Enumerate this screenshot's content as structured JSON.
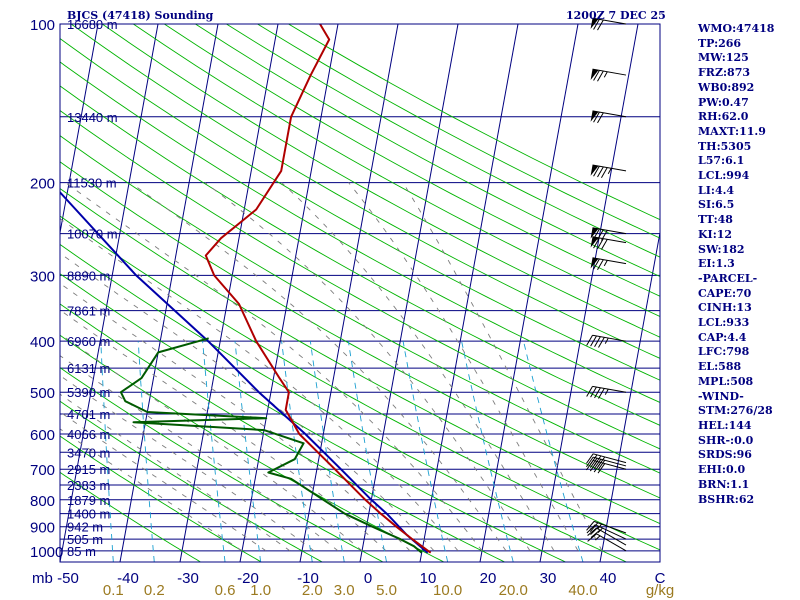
{
  "title": {
    "station": "BJCS (47418) Sounding",
    "time": "1200Z  7 DEC 25"
  },
  "indices": [
    "WMO:47418",
    "TP:266",
    "MW:125",
    "FRZ:873",
    "WB0:892",
    "PW:0.47",
    "RH:62.0",
    "MAXT:11.9",
    "TH:5305",
    "L57:6.1",
    "LCL:994",
    "LI:4.4",
    "SI:6.5",
    "TT:48",
    "KI:12",
    "SW:182",
    "EI:1.3",
    "-PARCEL-",
    "CAPE:70",
    "CINH:13",
    "LCL:933",
    "CAP:4.4",
    "LFC:798",
    "EL:588",
    "MPL:508",
    "-WIND-",
    "STM:276/28",
    "HEL:144",
    "SHR-:0.0",
    "SRDS:96",
    "EHI:0.0",
    "BRN:1.1",
    "BSHR:62"
  ],
  "colors": {
    "axis": "#000080",
    "isotherm": "#000080",
    "dry_adiabat": "#00b400",
    "moist_adiabat": "#7d7d7d",
    "mixing_ratio": "#1a9fd0",
    "temperature": "#b00000",
    "dewpoint": "#005a00",
    "parcel": "#0000aa",
    "mixing_label": "#9b7a20"
  },
  "chart_data": {
    "type": "skew-t log-p sounding",
    "pressure_axis_label": "mb",
    "mixing_ratio_unit": "g/kg",
    "pressure_range_mb": [
      100,
      1050
    ],
    "temperature_range_c": [
      -50,
      50
    ],
    "pressure_ticks": [
      100,
      200,
      300,
      400,
      500,
      600,
      700,
      800,
      900,
      1000
    ],
    "temperature_ticks": [
      -50,
      -40,
      -30,
      -20,
      -10,
      0,
      10,
      20,
      30,
      40
    ],
    "mixing_ratio_ticks": [
      {
        "label": "0.1",
        "value": 0.1
      },
      {
        "label": "0.2",
        "value": 0.2
      },
      {
        "label": "0.6",
        "value": 0.6
      },
      {
        "label": "1.0",
        "value": 1.0
      },
      {
        "label": "2.0",
        "value": 2.0
      },
      {
        "label": "3.0",
        "value": 3.0
      },
      {
        "label": "5.0",
        "value": 5.0
      },
      {
        "label": "10.0",
        "value": 10.0
      },
      {
        "label": "20.0",
        "value": 20.0
      },
      {
        "label": "40.0",
        "value": 40.0
      }
    ],
    "height_levels": [
      {
        "p": 100,
        "label": "16680 m"
      },
      {
        "p": 150,
        "label": "13440 m"
      },
      {
        "p": 200,
        "label": "11530 m"
      },
      {
        "p": 250,
        "label": "10070 m"
      },
      {
        "p": 300,
        "label": "8890 m"
      },
      {
        "p": 350,
        "label": "7861 m"
      },
      {
        "p": 400,
        "label": "6960 m"
      },
      {
        "p": 450,
        "label": "6131 m"
      },
      {
        "p": 500,
        "label": "5390 m"
      },
      {
        "p": 550,
        "label": "4701 m"
      },
      {
        "p": 600,
        "label": "4066 m"
      },
      {
        "p": 650,
        "label": "3470 m"
      },
      {
        "p": 700,
        "label": "2915 m"
      },
      {
        "p": 750,
        "label": "2383 m"
      },
      {
        "p": 800,
        "label": "1879 m"
      },
      {
        "p": 850,
        "label": "1400 m"
      },
      {
        "p": 900,
        "label": "942 m"
      },
      {
        "p": 950,
        "label": "505 m"
      },
      {
        "p": 1000,
        "label": "85 m"
      }
    ],
    "temperature": [
      {
        "p": 1008,
        "t": 11.5
      },
      {
        "p": 1000,
        "t": 11
      },
      {
        "p": 950,
        "t": 8
      },
      {
        "p": 900,
        "t": 5
      },
      {
        "p": 850,
        "t": 2
      },
      {
        "p": 800,
        "t": -1
      },
      {
        "p": 700,
        "t": -7
      },
      {
        "p": 600,
        "t": -14
      },
      {
        "p": 540,
        "t": -17
      },
      {
        "p": 500,
        "t": -17
      },
      {
        "p": 470,
        "t": -19
      },
      {
        "p": 400,
        "t": -24
      },
      {
        "p": 340,
        "t": -28
      },
      {
        "p": 300,
        "t": -33
      },
      {
        "p": 275,
        "t": -35
      },
      {
        "p": 255,
        "t": -33
      },
      {
        "p": 225,
        "t": -28
      },
      {
        "p": 190,
        "t": -25
      },
      {
        "p": 160,
        "t": -25
      },
      {
        "p": 150,
        "t": -25
      },
      {
        "p": 125,
        "t": -23
      },
      {
        "p": 107,
        "t": -21
      },
      {
        "p": 100,
        "t": -23
      }
    ],
    "dewpoint": [
      {
        "p": 1008,
        "t": 10
      },
      {
        "p": 980,
        "t": 8.5
      },
      {
        "p": 950,
        "t": 6
      },
      {
        "p": 900,
        "t": 1
      },
      {
        "p": 850,
        "t": -4
      },
      {
        "p": 800,
        "t": -8
      },
      {
        "p": 730,
        "t": -14
      },
      {
        "p": 710,
        "t": -18
      },
      {
        "p": 670,
        "t": -14
      },
      {
        "p": 625,
        "t": -13
      },
      {
        "p": 590,
        "t": -20
      },
      {
        "p": 570,
        "t": -42
      },
      {
        "p": 560,
        "t": -20
      },
      {
        "p": 545,
        "t": -40
      },
      {
        "p": 520,
        "t": -44
      },
      {
        "p": 500,
        "t": -45
      },
      {
        "p": 470,
        "t": -42
      },
      {
        "p": 420,
        "t": -40
      },
      {
        "p": 395,
        "t": -32
      }
    ],
    "parcel": [
      {
        "p": 1008,
        "t": 11
      },
      {
        "p": 933,
        "t": 7
      },
      {
        "p": 850,
        "t": 3
      },
      {
        "p": 800,
        "t": 0
      },
      {
        "p": 700,
        "t": -6
      },
      {
        "p": 600,
        "t": -13
      },
      {
        "p": 500,
        "t": -22
      },
      {
        "p": 400,
        "t": -32
      },
      {
        "p": 300,
        "t": -46
      },
      {
        "p": 200,
        "t": -63
      },
      {
        "p": 150,
        "t": -73
      },
      {
        "p": 100,
        "t": -85
      }
    ],
    "wind": [
      {
        "p": 1000,
        "dir": 300,
        "spd": 15
      },
      {
        "p": 975,
        "dir": 300,
        "spd": 20
      },
      {
        "p": 950,
        "dir": 295,
        "spd": 25
      },
      {
        "p": 925,
        "dir": 290,
        "spd": 25
      },
      {
        "p": 700,
        "dir": 285,
        "spd": 40
      },
      {
        "p": 690,
        "dir": 285,
        "spd": 40
      },
      {
        "p": 680,
        "dir": 285,
        "spd": 40
      },
      {
        "p": 500,
        "dir": 280,
        "spd": 45
      },
      {
        "p": 400,
        "dir": 280,
        "spd": 45
      },
      {
        "p": 285,
        "dir": 280,
        "spd": 75
      },
      {
        "p": 260,
        "dir": 280,
        "spd": 80
      },
      {
        "p": 250,
        "dir": 280,
        "spd": 80
      },
      {
        "p": 190,
        "dir": 280,
        "spd": 85
      },
      {
        "p": 150,
        "dir": 280,
        "spd": 70
      },
      {
        "p": 125,
        "dir": 280,
        "spd": 75
      },
      {
        "p": 100,
        "dir": 280,
        "spd": 70
      }
    ]
  }
}
